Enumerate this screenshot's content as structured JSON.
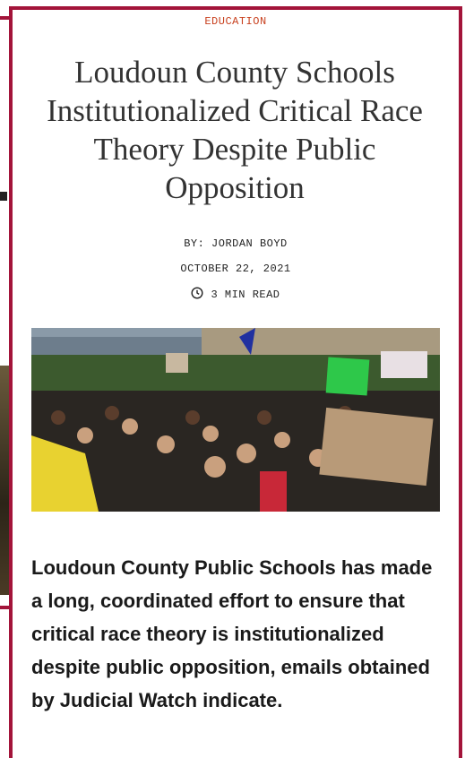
{
  "article": {
    "category": "EDUCATION",
    "title": "Loudoun County Schools Institutionalized Critical Race Theory Despite Public Opposition",
    "byline": "BY: JORDAN BOYD",
    "date": "OCTOBER 22, 2021",
    "read_time": "3 MIN READ",
    "summary": "Loudoun County Public Schools has made a long, coordinated effort to ensure that critical race theory is institutionalized despite public opposition, emails obtained by Judicial Watch indicate."
  }
}
